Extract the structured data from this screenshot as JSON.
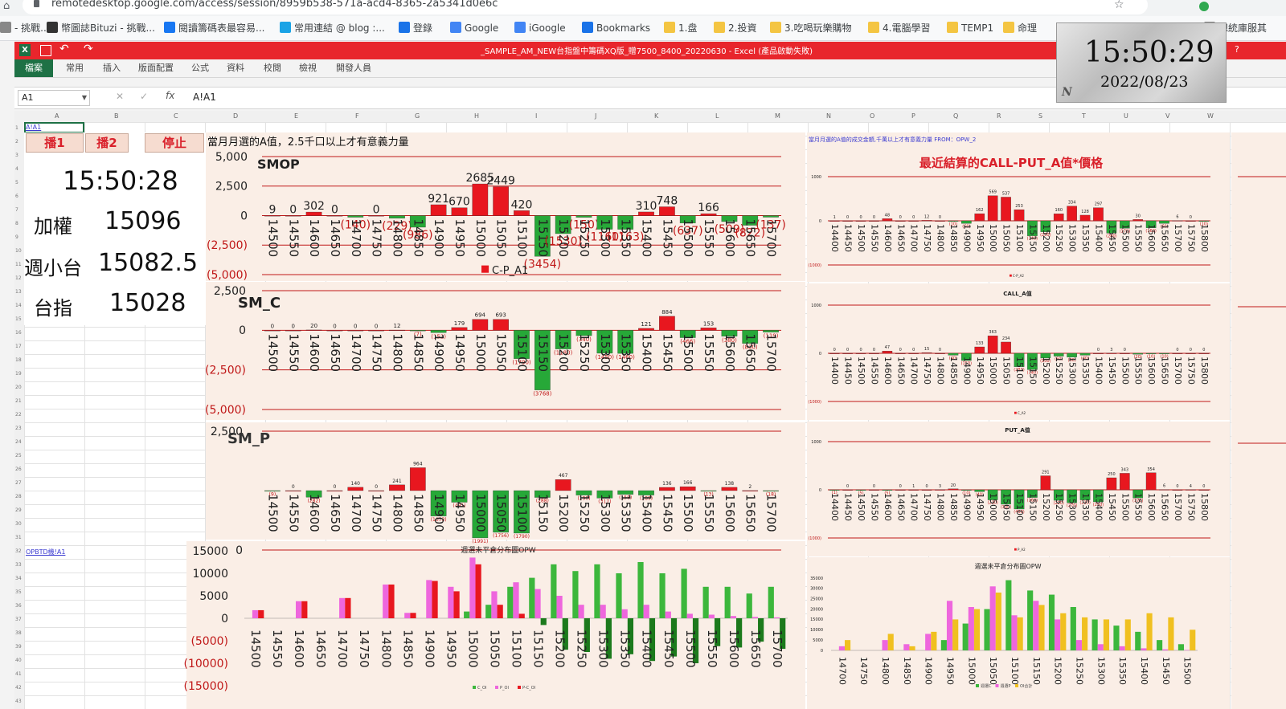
{
  "browser": {
    "url": "remotedesktop.google.com/access/session/8959b538-571a-acd4-8365-2a5341d0e6c",
    "bookmarks": [
      {
        "label": "- 挑戰...",
        "color": "#888"
      },
      {
        "label": "幣圖誌Bituzi - 挑戰...",
        "color": "#333"
      },
      {
        "label": "閱讀籌碼表最容易...",
        "color": "#1877f2"
      },
      {
        "label": "常用連結 @ blog :...",
        "color": "#1aa3e6"
      },
      {
        "label": "登錄",
        "color": "#1a73e8"
      },
      {
        "label": "Google",
        "color": "#4285f4"
      },
      {
        "label": "iGoogle",
        "color": "#4285f4"
      },
      {
        "label": "Bookmarks",
        "color": "#1a73e8"
      },
      {
        "label": "1.盘",
        "color": "#f4c542"
      },
      {
        "label": "2.投資",
        "color": "#f4c542"
      },
      {
        "label": "3.吃喝玩樂購物",
        "color": "#f4c542"
      },
      {
        "label": "4.電腦學習",
        "color": "#f4c542"
      },
      {
        "label": "TEMP1",
        "color": "#f4c542"
      },
      {
        "label": "命理",
        "color": "#f4c542"
      },
      {
        "label": "總統庫服其",
        "color": "#888"
      }
    ]
  },
  "excel": {
    "title": "_SAMPLE_AM_NEW台指盤中籌碼XQ版_贈7500_8400_20220630 - Excel (產品啟動失敗)",
    "tabs": [
      "檔案",
      "常用",
      "插入",
      "版面配置",
      "公式",
      "資料",
      "校閱",
      "檢視",
      "開發人員"
    ],
    "name_box": "A1",
    "formula": "A!A1",
    "col_headers": [
      "A",
      "B",
      "C",
      "D",
      "E",
      "F",
      "G",
      "H",
      "I",
      "J",
      "K",
      "L",
      "M",
      "N",
      "O",
      "P",
      "Q",
      "R",
      "S",
      "T",
      "U",
      "V",
      "W"
    ],
    "cell_a1": "A!A1",
    "link_opw": "OPBTD機!A1"
  },
  "left_panel": {
    "buttons": [
      "播1",
      "播2",
      "停止"
    ],
    "time": "15:50:28",
    "rows": [
      {
        "label": "加權",
        "value": "15096"
      },
      {
        "label": "週小台",
        "value": "15082.5"
      },
      {
        "label": "台指",
        "value": "15028"
      }
    ]
  },
  "clock": {
    "time": "15:50:29",
    "date": "2022/08/23",
    "badge": "N"
  },
  "chart_data": [
    {
      "type": "bar",
      "id": "smop",
      "title": "SMOP",
      "header": "當月月選的A值，2.5千口以上才有意義力量",
      "legend": "C-P_A1",
      "categories": [
        "14500",
        "14550",
        "14600",
        "14650",
        "14700",
        "14750",
        "14800",
        "14850",
        "14900",
        "14950",
        "15000",
        "15050",
        "15100",
        "15150",
        "15200",
        "15250",
        "15300",
        "15350",
        "15400",
        "15450",
        "15500",
        "15550",
        "15600",
        "15650",
        "15700"
      ],
      "values": [
        9,
        0,
        302,
        0,
        -140,
        0,
        -229,
        -986,
        921,
        670,
        2685,
        2449,
        420,
        -3454,
        -1530,
        -150,
        -1160,
        -1163,
        310,
        748,
        -637,
        166,
        -509,
        -822,
        -137
      ],
      "yticks": [
        "5,000",
        "2,500",
        "0",
        "(2,500)",
        "(5,000)"
      ],
      "ylim": [
        -5000,
        5000
      ]
    },
    {
      "type": "bar",
      "id": "sm_c",
      "title": "SM_C",
      "categories": [
        "14500",
        "14550",
        "14600",
        "14650",
        "14700",
        "14750",
        "14800",
        "14850",
        "14900",
        "14950",
        "15000",
        "15050",
        "15100",
        "15150",
        "15200",
        "15250",
        "15300",
        "15350",
        "15400",
        "15450",
        "15500",
        "15550",
        "15600",
        "15650",
        "15700"
      ],
      "values": [
        0,
        0,
        20,
        0,
        0,
        0,
        12,
        -7,
        -152,
        179,
        694,
        693,
        -1790,
        -3768,
        -1180,
        -340,
        -1450,
        -1460,
        121,
        884,
        -466,
        153,
        -380,
        -830,
        -119
      ],
      "yticks": [
        "2,500",
        "0",
        "(2,500)",
        "(5,000)"
      ],
      "ylim": [
        -5000,
        2500
      ]
    },
    {
      "type": "bar",
      "id": "sm_p",
      "title": "SM_P",
      "categories": [
        "14500",
        "14550",
        "14600",
        "14650",
        "14700",
        "14750",
        "14800",
        "14850",
        "14900",
        "14950",
        "15000",
        "15050",
        "15100",
        "15150",
        "15200",
        "15250",
        "15300",
        "15350",
        "15400",
        "15450",
        "15500",
        "15550",
        "15600",
        "15650",
        "15700"
      ],
      "values": [
        -9,
        0,
        -282,
        0,
        140,
        0,
        241,
        964,
        -1073,
        -491,
        -1991,
        -1756,
        -1790,
        -288,
        467,
        -190,
        -317,
        -158,
        -189,
        136,
        166,
        -13,
        138,
        2,
        -18
      ],
      "yticks": [
        "2,500",
        "0"
      ],
      "ylim": [
        -2500,
        2500
      ]
    },
    {
      "type": "bar",
      "id": "weekly_oi",
      "title": "週選未平倉分布圖OPW",
      "categories": [
        "14500",
        "14550",
        "14600",
        "14650",
        "14700",
        "14750",
        "14800",
        "14850",
        "14900",
        "14950",
        "15000",
        "15050",
        "15100",
        "15150",
        "15200",
        "15250",
        "15300",
        "15350",
        "15400",
        "15450",
        "15500",
        "15550",
        "15600",
        "15650",
        "15700"
      ],
      "series": [
        {
          "name": "C_OI",
          "color": "#3cb73c",
          "values": [
            0,
            0,
            0,
            0,
            0,
            0,
            0,
            0,
            0,
            0,
            1500,
            3000,
            7000,
            9000,
            12000,
            10500,
            12000,
            10000,
            12500,
            10000,
            11000,
            7000,
            7000,
            5500,
            7000
          ]
        },
        {
          "name": "P_OI",
          "color": "#ee66dd",
          "values": [
            1800,
            0,
            3800,
            0,
            4500,
            0,
            7500,
            1200,
            8500,
            7000,
            13500,
            6000,
            8000,
            6500,
            5000,
            3000,
            3000,
            2000,
            3000,
            1500,
            1000,
            800,
            500,
            300,
            200
          ]
        },
        {
          "name": "P-C_OI",
          "color": "#e8171f",
          "values": [
            1800,
            0,
            3800,
            0,
            4500,
            0,
            7500,
            1200,
            8300,
            6000,
            12000,
            3000,
            1000,
            -1500,
            -7000,
            -7500,
            -9000,
            -8000,
            -9500,
            -8500,
            -10000,
            -6200,
            -6500,
            -5200,
            -6800
          ]
        }
      ],
      "yticks": [
        "15000",
        "10000",
        "5000",
        "0",
        "(5000)",
        "(10000)",
        "(15000)"
      ],
      "ylim": [
        -15000,
        15000
      ]
    },
    {
      "type": "bar",
      "id": "recent_cp",
      "title": "最近結算的CALL-PUT_A值*價格",
      "header": "當月月選的A值的成交金額,千萬以上才有意義力量  FROM：OPW_2",
      "legend": "C-P_A2",
      "categories": [
        "14400",
        "14450",
        "14500",
        "14550",
        "14600",
        "14650",
        "14700",
        "14750",
        "14800",
        "14850",
        "14900",
        "14950",
        "15000",
        "15050",
        "15100",
        "15150",
        "15200",
        "15250",
        "15300",
        "15350",
        "15400",
        "15450",
        "15500",
        "15550",
        "15600",
        "15650",
        "15700",
        "15750",
        "15800"
      ],
      "values": [
        1,
        0,
        0,
        0,
        48,
        0,
        0,
        12,
        0,
        -10,
        -60,
        162,
        569,
        537,
        253,
        -340,
        -250,
        160,
        334,
        128,
        297,
        -280,
        -170,
        30,
        -160,
        -60,
        6,
        0,
        -10
      ],
      "yticks": [
        "1000",
        "0",
        "(1000)"
      ],
      "ylim": [
        -1000,
        1000
      ]
    },
    {
      "type": "bar",
      "id": "call_a",
      "title": "CALL_A值",
      "legend": "C_A2",
      "categories": [
        "14400",
        "14450",
        "14500",
        "14550",
        "14600",
        "14650",
        "14700",
        "14750",
        "14800",
        "14850",
        "14900",
        "14950",
        "15000",
        "15050",
        "15100",
        "15150",
        "15200",
        "15250",
        "15300",
        "15350",
        "15400",
        "15450",
        "15500",
        "15550",
        "15600",
        "15650",
        "15700",
        "15750",
        "15800"
      ],
      "values": [
        0,
        0,
        0,
        0,
        47,
        0,
        0,
        15,
        0,
        -40,
        -150,
        133,
        363,
        234,
        -280,
        -340,
        -100,
        -60,
        -80,
        -40,
        0,
        3,
        0,
        -20,
        -10,
        -10,
        0,
        0,
        0
      ],
      "yticks": [
        "1000",
        "0",
        "(1000)"
      ],
      "ylim": [
        -1000,
        1000
      ]
    },
    {
      "type": "bar",
      "id": "put_a",
      "title": "PUT_A值",
      "legend": "P_A2",
      "categories": [
        "14400",
        "14450",
        "14500",
        "14550",
        "14600",
        "14650",
        "14700",
        "14750",
        "14800",
        "14850",
        "14900",
        "14950",
        "15000",
        "15050",
        "15100",
        "15150",
        "15200",
        "15250",
        "15300",
        "15350",
        "15400",
        "15450",
        "15500",
        "15550",
        "15600",
        "15650",
        "15700",
        "15750",
        "15800"
      ],
      "values": [
        -1,
        0,
        -5,
        0,
        -5,
        0,
        1,
        0,
        3,
        20,
        -10,
        -40,
        -210,
        -300,
        -400,
        -160,
        291,
        -220,
        -270,
        -210,
        -250,
        250,
        343,
        -170,
        354,
        6,
        0,
        4,
        0
      ],
      "yticks": [
        "1000",
        "0",
        "(1000)"
      ],
      "ylim": [
        -1000,
        1000
      ]
    },
    {
      "type": "bar",
      "id": "weekly_oi_2",
      "title": "週選未平倉分布圖OPW",
      "categories": [
        "14700",
        "14750",
        "14800",
        "14850",
        "14900",
        "14950",
        "15000",
        "15050",
        "15100",
        "15150",
        "15200",
        "15250",
        "15300",
        "15350",
        "15400",
        "15450",
        "15500"
      ],
      "series": [
        {
          "name": "週選C",
          "color": "#3cb73c",
          "values": [
            0,
            0,
            0,
            0,
            0,
            5000,
            13000,
            20000,
            34000,
            29000,
            27000,
            21000,
            15000,
            12000,
            9000,
            5000,
            3000
          ]
        },
        {
          "name": "週選P",
          "color": "#ee66dd",
          "values": [
            2000,
            0,
            5000,
            3000,
            8000,
            24000,
            21000,
            31000,
            17000,
            24000,
            15000,
            5000,
            3000,
            2000,
            1000,
            500,
            200
          ]
        },
        {
          "name": "OI合計",
          "color": "#f0c020",
          "values": [
            5000,
            0,
            8000,
            2000,
            9000,
            15000,
            20000,
            28000,
            16000,
            22000,
            18000,
            16000,
            15000,
            15000,
            18000,
            16000,
            10000
          ]
        }
      ],
      "yticks": [
        "35000",
        "30000",
        "25000",
        "20000",
        "15000",
        "10000",
        "5000",
        "0"
      ],
      "ylim": [
        0,
        35000
      ]
    }
  ]
}
